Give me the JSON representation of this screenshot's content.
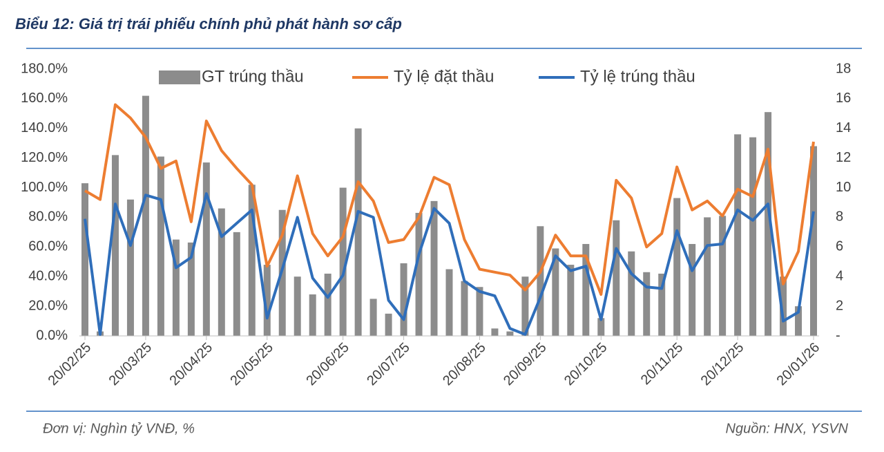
{
  "chart_data": {
    "type": "bar-line",
    "title": "Biểu 12: Giá trị trái phiếu chính phủ phát hành sơ cấp",
    "unit_note": "Đơn vị: Nghìn tỷ VNĐ, %",
    "source": "Nguồn: HNX, YSVN",
    "categories": [
      "20/02/25",
      null,
      null,
      null,
      "20/03/25",
      null,
      null,
      null,
      "20/04/25",
      null,
      null,
      null,
      "20/05/25",
      null,
      null,
      null,
      null,
      "20/06/25",
      null,
      null,
      null,
      "20/07/25",
      null,
      null,
      null,
      null,
      "20/08/25",
      null,
      null,
      null,
      "20/09/25",
      null,
      null,
      null,
      "20/10/25",
      null,
      null,
      null,
      null,
      "20/11/25",
      null,
      null,
      null,
      "20/12/25",
      null,
      null,
      null,
      null,
      "20/01/26"
    ],
    "series": [
      {
        "name": "GT trúng thầu",
        "kind": "bar",
        "axis": "y2",
        "color": "#8c8c8c",
        "values": [
          10.3,
          0.3,
          12.2,
          9.2,
          16.2,
          12.1,
          6.5,
          6.3,
          11.7,
          8.6,
          7.0,
          10.2,
          4.8,
          8.5,
          4.0,
          2.8,
          4.2,
          10.0,
          14.0,
          2.5,
          1.5,
          4.9,
          8.3,
          9.1,
          4.5,
          3.7,
          3.3,
          0.5,
          0.3,
          4.0,
          7.4,
          5.9,
          4.8,
          6.2,
          1.2,
          7.8,
          5.7,
          4.3,
          4.2,
          9.3,
          6.2,
          8.0,
          8.1,
          13.6,
          13.4,
          15.1,
          4.0,
          2.0,
          12.8
        ]
      },
      {
        "name": "Tỷ lệ đặt thầu",
        "kind": "line",
        "color": "#ed7d31",
        "values": [
          98,
          92,
          156,
          147,
          134,
          113,
          118,
          77,
          145,
          125,
          113,
          102,
          47,
          68,
          108,
          69,
          54,
          67,
          104,
          91,
          63,
          65,
          80,
          107,
          102,
          65,
          45,
          43,
          41,
          31,
          43,
          68,
          54,
          54,
          28,
          105,
          93,
          60,
          69,
          114,
          85,
          91,
          81,
          99,
          94,
          126,
          35,
          57,
          131
        ]
      },
      {
        "name": "Tỷ lệ trúng thầu",
        "kind": "line",
        "color": "#2f6eba",
        "values": [
          79,
          1,
          89,
          61,
          95,
          92,
          46,
          53,
          96,
          67,
          76,
          85,
          12,
          45,
          80,
          39,
          26,
          41,
          84,
          80,
          24,
          11,
          55,
          86,
          76,
          37,
          30,
          27,
          5,
          1,
          26,
          54,
          44,
          47,
          11,
          59,
          42,
          33,
          32,
          71,
          44,
          61,
          62,
          85,
          78,
          89,
          10,
          16,
          84
        ]
      }
    ],
    "ylim": [
      0,
      180
    ],
    "yticks": [
      {
        "value": 0,
        "label": "0.0%"
      },
      {
        "value": 20,
        "label": "20.0%"
      },
      {
        "value": 40,
        "label": "40.0%"
      },
      {
        "value": 60,
        "label": "60.0%"
      },
      {
        "value": 80,
        "label": "80.0%"
      },
      {
        "value": 100,
        "label": "100.0%"
      },
      {
        "value": 120,
        "label": "120.0%"
      },
      {
        "value": 140,
        "label": "140.0%"
      },
      {
        "value": 160,
        "label": "160.0%"
      },
      {
        "value": 180,
        "label": "180.0%"
      }
    ],
    "y2lim": [
      0,
      18
    ],
    "y2ticks": [
      {
        "value": 0,
        "label": "-"
      },
      2,
      4,
      6,
      8,
      10,
      12,
      14,
      16,
      18
    ],
    "grid": false
  }
}
